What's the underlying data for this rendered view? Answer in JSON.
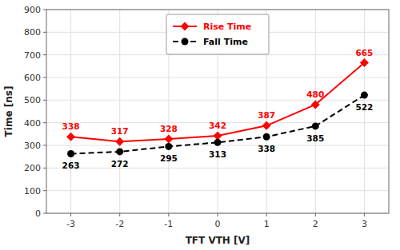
{
  "chart_data": {
    "type": "line",
    "x_label": "TFT VTH [V]",
    "y_label": "Time [ns]",
    "x": [
      -3,
      -2,
      -1,
      0,
      1,
      2,
      3
    ],
    "series": [
      {
        "name": "Rise Time",
        "color": "#ff0000",
        "marker": "diamond",
        "line_style": "solid",
        "values": [
          338,
          317,
          328,
          342,
          387,
          480,
          665
        ]
      },
      {
        "name": "Fall Time",
        "color": "#000000",
        "marker": "circle",
        "line_style": "dashed",
        "values": [
          263,
          272,
          295,
          313,
          338,
          385,
          522
        ]
      }
    ],
    "xlim": [
      -3.5,
      3.5
    ],
    "xticks": [
      -3,
      -2,
      -1,
      0,
      1,
      2,
      3
    ],
    "ylim": [
      0,
      900
    ],
    "yticks": [
      0,
      100,
      200,
      300,
      400,
      500,
      600,
      700,
      800,
      900
    ],
    "grid": true,
    "legend": "upper center",
    "data_labels": true
  }
}
